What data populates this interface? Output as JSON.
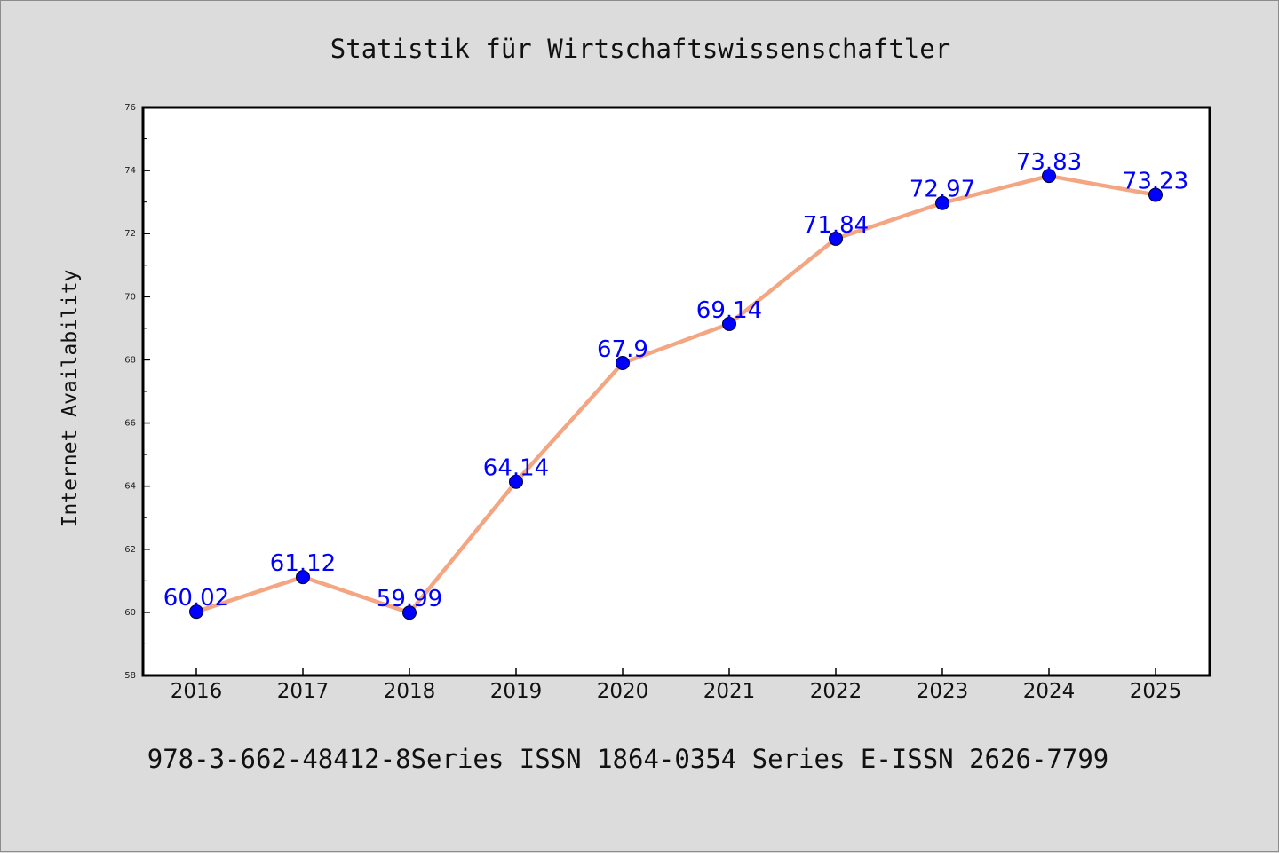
{
  "chart_data": {
    "type": "line",
    "title": "Statistik für Wirtschaftswissenschaftler",
    "ylabel": "Internet Availability",
    "xlabel": "",
    "caption": "978-3-662-48412-8Series ISSN 1864-0354 Series E-ISSN 2626-7799",
    "categories": [
      "2016",
      "2017",
      "2018",
      "2019",
      "2020",
      "2021",
      "2022",
      "2023",
      "2024",
      "2025"
    ],
    "series": [
      {
        "values": [
          60.02,
          61.12,
          59.99,
          64.14,
          67.9,
          69.14,
          71.84,
          72.97,
          73.83,
          73.23
        ],
        "labels": [
          "60.02",
          "61.12",
          "59.99",
          "64.14",
          "67.9",
          "69.14",
          "71.84",
          "72.97",
          "73.83",
          "73.23"
        ],
        "line_color": "#f4a582",
        "marker_color": "#0000ff",
        "label_color": "#0000ff"
      }
    ],
    "ylim": [
      58,
      76
    ],
    "yticks": [
      "58",
      "60",
      "62",
      "64",
      "66",
      "68",
      "70",
      "72",
      "74",
      "76"
    ],
    "grid": false,
    "legend": "none"
  }
}
